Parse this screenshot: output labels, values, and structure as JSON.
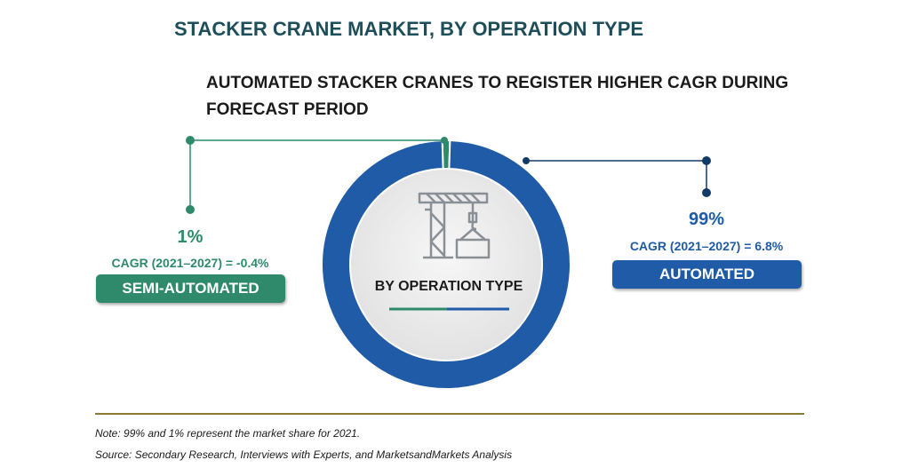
{
  "header": {
    "title": "STACKER CRANE MARKET, BY OPERATION TYPE",
    "subtitle": "AUTOMATED STACKER CRANES TO REGISTER HIGHER CAGR DURING FORECAST PERIOD"
  },
  "chart_data": {
    "type": "pie",
    "title": "STACKER CRANE MARKET, BY OPERATION TYPE",
    "subtitle": "AUTOMATED STACKER CRANES TO REGISTER HIGHER CAGR DURING FORECAST PERIOD",
    "center_label": "BY OPERATION TYPE",
    "donut": true,
    "categories": [
      "SEMI-AUTOMATED",
      "AUTOMATED"
    ],
    "values": [
      1,
      99
    ],
    "value_labels": [
      "1%",
      "99%"
    ],
    "cagr_labels": [
      "CAGR (2021–2027) = -0.4%",
      "CAGR (2021–2027) = 6.8%"
    ],
    "colors": [
      "#2e8a6b",
      "#1f5ba6"
    ]
  },
  "colors": {
    "title": "#1e4e5a",
    "semi_automated": "#2e8a6b",
    "automated": "#1f5ba6",
    "automated_dark": "#123a66",
    "inner_disc": "#f1f1f1",
    "icon": "#8a8f96"
  },
  "icon": "stacker-crane-icon",
  "footer": {
    "note": "Note: 99% and 1% represent the market share for 2021.",
    "source": "Source: Secondary Research, Interviews with Experts, and MarketsandMarkets Analysis"
  }
}
